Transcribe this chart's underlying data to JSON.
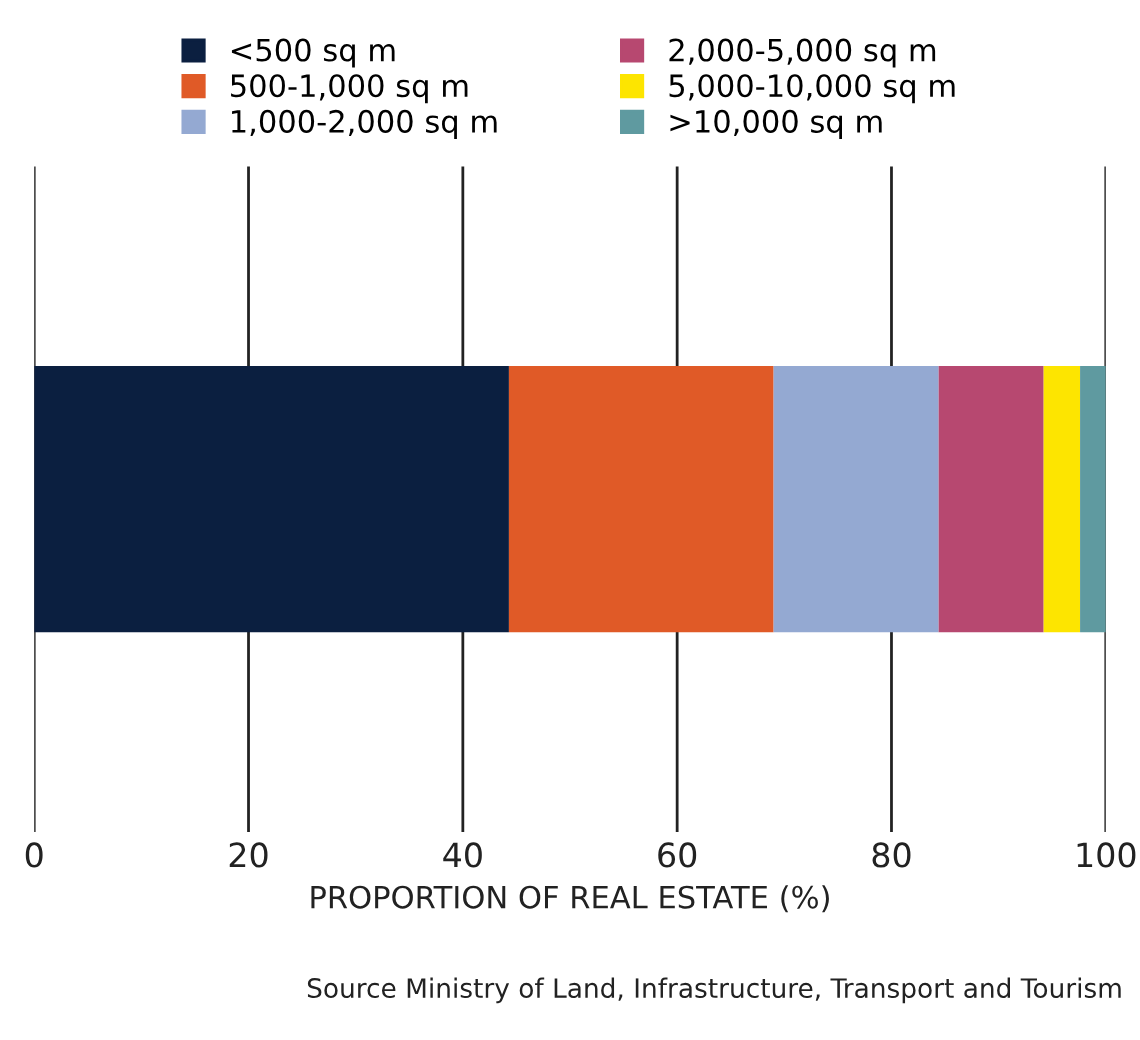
{
  "chart_data": {
    "type": "bar",
    "orientation": "horizontal",
    "stacked": true,
    "categories": [
      null
    ],
    "series": [
      {
        "name": "<500 sq m",
        "color": "#0b1f40",
        "values": [
          44.3
        ]
      },
      {
        "name": "500-1,000 sq m",
        "color": "#e05a27",
        "values": [
          24.7
        ]
      },
      {
        "name": "1,000-2,000 sq m",
        "color": "#94a9d2",
        "values": [
          15.4
        ]
      },
      {
        "name": "2,000-5,000 sq m",
        "color": "#b74870",
        "values": [
          9.8
        ]
      },
      {
        "name": "5,000-10,000 sq m",
        "color": "#fde500",
        "values": [
          3.4
        ]
      },
      {
        "name": ">10,000 sq m",
        "color": "#5f9aa0",
        "values": [
          2.4
        ]
      }
    ],
    "xlim": [
      0,
      100
    ],
    "xticks": [
      0,
      20,
      40,
      60,
      80,
      100
    ],
    "xlabel": "PROPORTION OF REAL ESTATE (%)",
    "grid": "x",
    "legend": "top",
    "annotations": [
      "Source Ministry of Land, Infrastructure, Transport and Tourism"
    ]
  }
}
